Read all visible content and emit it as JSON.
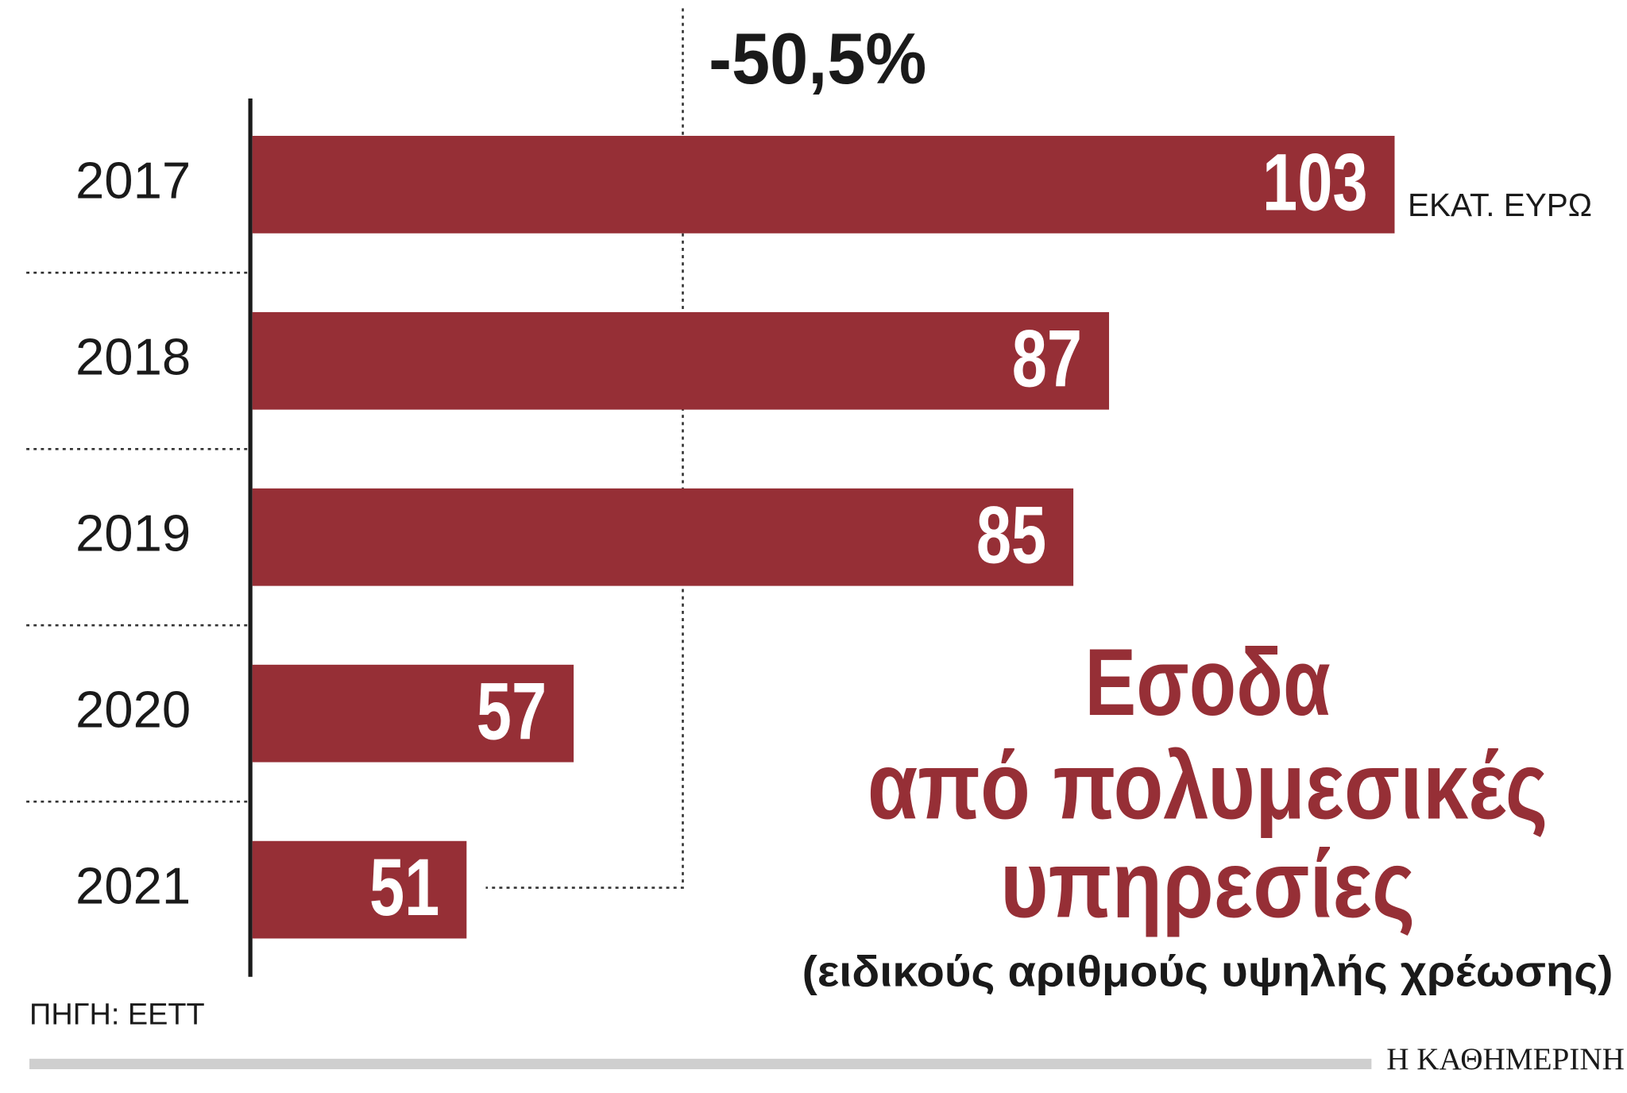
{
  "chart_data": {
    "type": "bar",
    "orientation": "horizontal",
    "title": [
      "Εσοδα",
      "από πολυμεσικές",
      "υπηρεσίες"
    ],
    "subtitle": "(ειδικούς αριθμούς υψηλής χρέωσης)",
    "unit": "ΕΚΑΤ. ΕΥΡΩ",
    "annotation": "-50,5%",
    "source": "ΠΗΓΗ: ΕΕΤΤ",
    "publisher": "Η ΚΑΘΗΜΕΡΙΝΗ",
    "categories": [
      "2017",
      "2018",
      "2019",
      "2020",
      "2021"
    ],
    "values": [
      103,
      87,
      85,
      57,
      51
    ],
    "color": "#962f36",
    "xlim": [
      39,
      116
    ]
  }
}
